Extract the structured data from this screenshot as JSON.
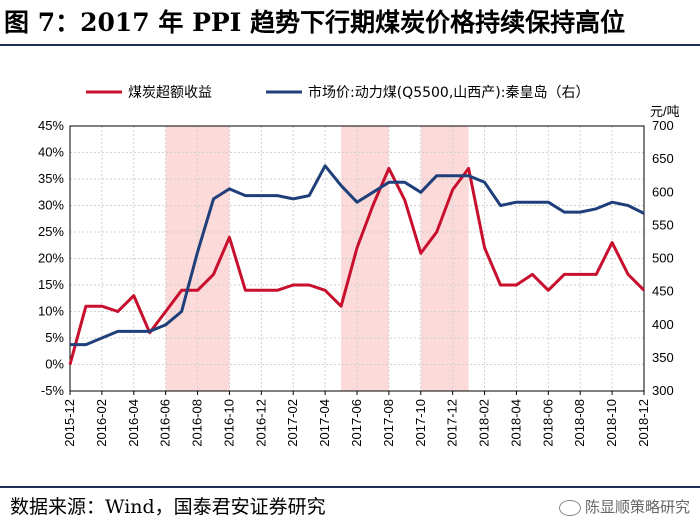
{
  "title": "图 7：2017 年 PPI 趋势下行期煤炭价格持续保持高位",
  "source": "数据来源：Wind，国泰君安证券研究",
  "watermark": "陈显顺策略研究",
  "colors": {
    "left_series": "#c8102e",
    "right_series": "#1f3f7a",
    "shade": "#fbd4d4",
    "rule": "#1f2d57"
  },
  "chart_data": {
    "type": "line",
    "legend_position": "top",
    "grid": true,
    "x_tick_labels": [
      "2015-12",
      "2016-02",
      "2016-04",
      "2016-06",
      "2016-08",
      "2016-10",
      "2016-12",
      "2017-02",
      "2017-04",
      "2017-06",
      "2017-08",
      "2017-10",
      "2017-12",
      "2018-02",
      "2018-04",
      "2018-06",
      "2018-08",
      "2018-10",
      "2018-12"
    ],
    "x_range": [
      "2015-12",
      "2018-12"
    ],
    "y_left": {
      "ticks": [
        "45%",
        "40%",
        "35%",
        "30%",
        "25%",
        "20%",
        "15%",
        "10%",
        "5%",
        "0%",
        "-5%"
      ],
      "range": [
        -5,
        45
      ]
    },
    "y_right": {
      "ticks": [
        "700",
        "650",
        "600",
        "550",
        "500",
        "450",
        "400",
        "350",
        "300"
      ],
      "range": [
        300,
        700
      ],
      "unit": "元/吨"
    },
    "shaded_periods": [
      [
        "2016-06",
        "2016-10"
      ],
      [
        "2017-05",
        "2017-08"
      ],
      [
        "2017-10",
        "2018-01"
      ]
    ],
    "series": [
      {
        "name": "煤炭超额收益",
        "axis": "left",
        "x": [
          "2015-12",
          "2016-01",
          "2016-02",
          "2016-03",
          "2016-04",
          "2016-05",
          "2016-06",
          "2016-07",
          "2016-08",
          "2016-09",
          "2016-10",
          "2016-11",
          "2016-12",
          "2017-01",
          "2017-02",
          "2017-03",
          "2017-04",
          "2017-05",
          "2017-06",
          "2017-07",
          "2017-08",
          "2017-09",
          "2017-10",
          "2017-11",
          "2017-12",
          "2018-01",
          "2018-02",
          "2018-03",
          "2018-04",
          "2018-05",
          "2018-06",
          "2018-07",
          "2018-08",
          "2018-09",
          "2018-10",
          "2018-11",
          "2018-12"
        ],
        "values": [
          0,
          11,
          11,
          10,
          13,
          6,
          10,
          14,
          14,
          17,
          24,
          14,
          14,
          14,
          15,
          15,
          14,
          11,
          22,
          30,
          37,
          31,
          21,
          25,
          33,
          37,
          22,
          15,
          15,
          17,
          14,
          17,
          17,
          17,
          23,
          17,
          14
        ]
      },
      {
        "name": "市场价:动力煤(Q5500,山西产):秦皇岛（右）",
        "axis": "right",
        "x": [
          "2015-12",
          "2016-01",
          "2016-02",
          "2016-03",
          "2016-04",
          "2016-05",
          "2016-06",
          "2016-07",
          "2016-08",
          "2016-09",
          "2016-10",
          "2016-11",
          "2016-12",
          "2017-01",
          "2017-02",
          "2017-03",
          "2017-04",
          "2017-05",
          "2017-06",
          "2017-07",
          "2017-08",
          "2017-09",
          "2017-10",
          "2017-11",
          "2017-12",
          "2018-01",
          "2018-02",
          "2018-03",
          "2018-04",
          "2018-05",
          "2018-06",
          "2018-07",
          "2018-08",
          "2018-09",
          "2018-10",
          "2018-11",
          "2018-12"
        ],
        "values": [
          370,
          370,
          380,
          390,
          390,
          390,
          400,
          420,
          510,
          590,
          605,
          595,
          595,
          595,
          590,
          595,
          640,
          610,
          585,
          600,
          615,
          615,
          600,
          625,
          625,
          625,
          615,
          580,
          585,
          585,
          585,
          570,
          570,
          575,
          585,
          580,
          568
        ]
      }
    ]
  }
}
